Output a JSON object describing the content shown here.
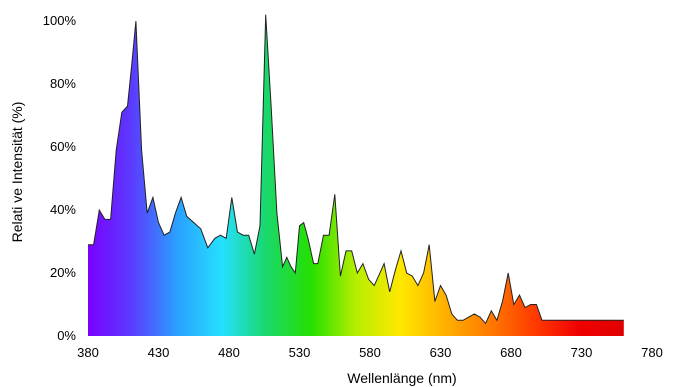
{
  "chart_data": {
    "type": "area",
    "xlabel": "Wellenlänge (nm)",
    "ylabel": "Relati ve Intensität (%)",
    "xlim": [
      380,
      780
    ],
    "ylim": [
      0,
      100
    ],
    "x_ticks": [
      "380",
      "430",
      "480",
      "530",
      "580",
      "630",
      "680",
      "730",
      "780"
    ],
    "y_ticks": [
      "0%",
      "20%",
      "40%",
      "60%",
      "80%",
      "100%"
    ],
    "grid": false,
    "legend": "none",
    "fill": "visible-spectrum gradient",
    "outline_color": "#222222",
    "gradient_colors": [
      "#7a00ff",
      "#5a3dff",
      "#2aa0ff",
      "#25e0ff",
      "#19d86a",
      "#25e000",
      "#b6ee00",
      "#ffe800",
      "#ffb000",
      "#ff7a00",
      "#ff3b00",
      "#f00000",
      "#e00000"
    ],
    "series": [
      {
        "x": [
          380,
          384,
          388,
          392,
          396,
          400,
          404,
          408,
          411,
          414,
          418,
          422,
          426,
          430,
          434,
          438,
          442,
          446,
          450,
          455,
          460,
          465,
          470,
          474,
          478,
          482,
          486,
          490,
          494,
          498,
          502,
          506,
          510,
          514,
          518,
          521,
          524,
          527,
          530,
          533,
          536,
          540,
          543,
          547,
          551,
          555,
          559,
          563,
          567,
          571,
          575,
          579,
          583,
          586,
          590,
          594,
          598,
          602,
          606,
          610,
          614,
          618,
          622,
          626,
          630,
          634,
          638,
          642,
          646,
          650,
          654,
          658,
          662,
          666,
          670,
          674,
          678,
          682,
          686,
          690,
          694,
          698,
          702,
          706,
          710,
          714,
          718,
          722,
          726,
          730,
          734,
          738,
          742,
          746,
          750,
          754,
          758,
          760
        ],
        "y": [
          29,
          29,
          40,
          37,
          37,
          59,
          71,
          73,
          86,
          100,
          59,
          39,
          44,
          36,
          32,
          33,
          39,
          44,
          38,
          36,
          34,
          28,
          31,
          32,
          31,
          44,
          33,
          32,
          32,
          26,
          35,
          102,
          72,
          39,
          22,
          25,
          22,
          20,
          35,
          36,
          31,
          23,
          23,
          32,
          32,
          45,
          19,
          27,
          27,
          20,
          23,
          18,
          16,
          19,
          23,
          14,
          21,
          27,
          20,
          19,
          16,
          20,
          29,
          11,
          16,
          13,
          7,
          5,
          5,
          6,
          7,
          6,
          4,
          8,
          5,
          11,
          20,
          10,
          13,
          9,
          10,
          10,
          5,
          5,
          5,
          5,
          5,
          5,
          5,
          5,
          5,
          5,
          5,
          5,
          5,
          5,
          5,
          5
        ]
      }
    ]
  }
}
